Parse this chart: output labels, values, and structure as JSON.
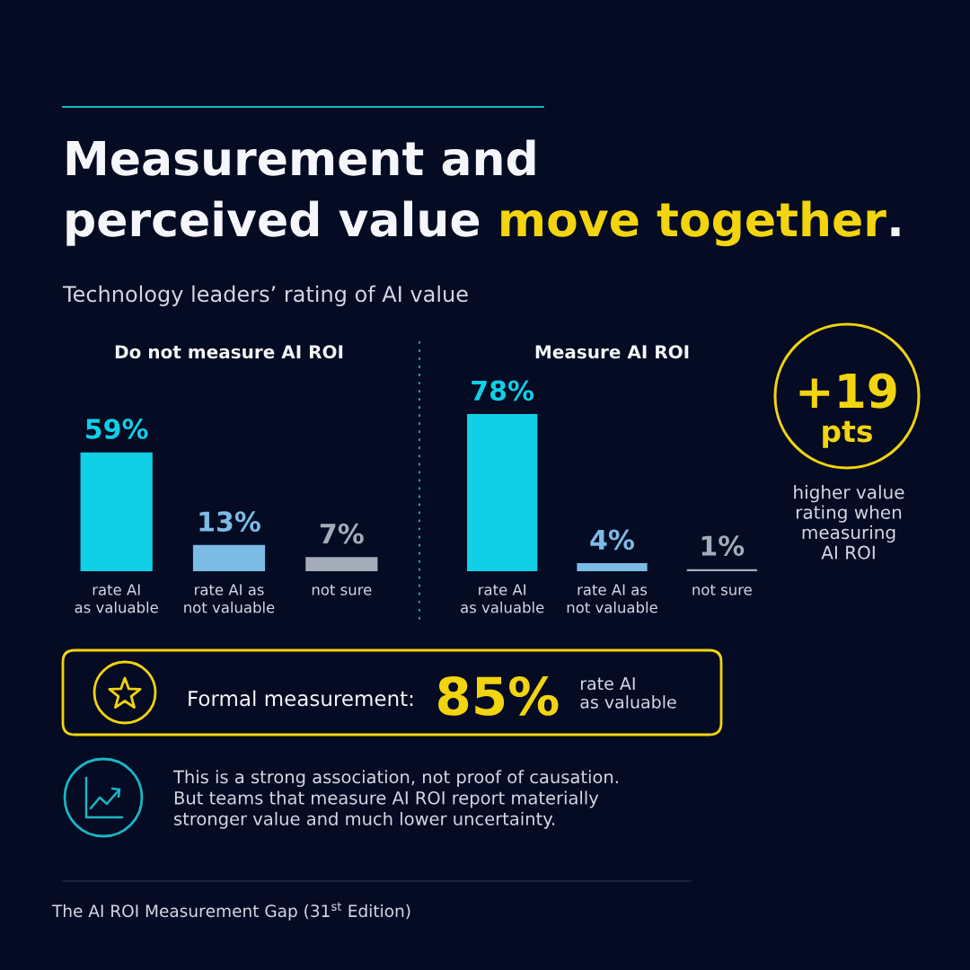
{
  "chart_data": [
    {
      "type": "other",
      "title": "Measurement and perceived value move together.",
      "subtitle": "Technology leaders’ rating of AI value",
      "annotations": [
        "The AI ROI Measurement Gap (31$^{st}$ Edition)"
      ]
    },
    {
      "type": "bar",
      "title": "Do not measure AI ROI",
      "categories": [
        "rate AI\nas valuable",
        "rate AI as\nnot valuable",
        "not sure"
      ],
      "values": [
        59,
        13,
        7
      ],
      "colors": [
        "#0fd0e6",
        "#7cbbe6",
        "#a3acb8"
      ],
      "value_labels": [
        "59%",
        "13%",
        "7%"
      ]
    },
    {
      "type": "bar",
      "title": "Measure AI ROI",
      "categories": [
        "rate AI\nas valuable",
        "rate AI as\nnot valuable",
        "not sure"
      ],
      "values": [
        78,
        4,
        1
      ],
      "colors": [
        "#0fd0e6",
        "#7cbbe6",
        "#a3acb8"
      ],
      "value_labels": [
        "78%",
        "4%",
        "1%"
      ]
    },
    {
      "type": "other",
      "annotations": [
        "+19",
        "pts",
        "higher value\nrating when\nmeasuring\nAI ROI"
      ]
    },
    {
      "type": "other",
      "annotations": [
        "Formal measurement:",
        "85%",
        "rate AI\nas valuable"
      ]
    },
    {
      "type": "other",
      "annotations": [
        "This is a strong association, not proof of causation.\nBut teams that measure AI ROI report materially\nstronger value and much lower uncertainty."
      ]
    }
  ]
}
